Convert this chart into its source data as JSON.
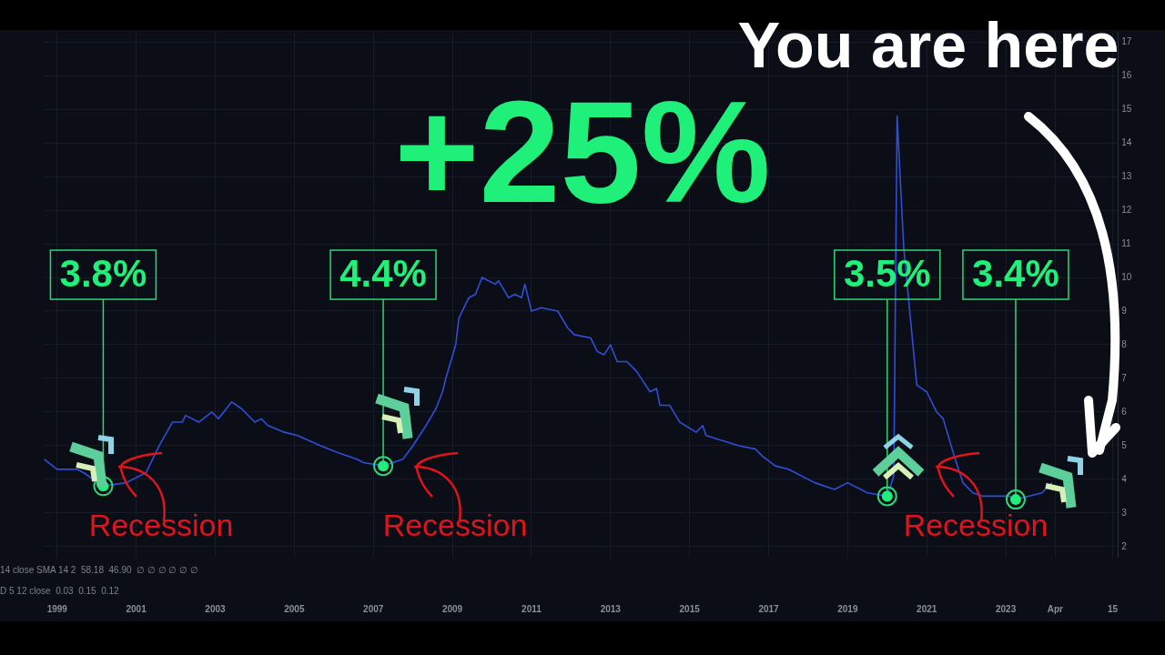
{
  "chart_data": {
    "type": "line",
    "title": "+25%",
    "x": [
      "1998-09",
      "1999-01",
      "1999-07",
      "1999-09",
      "2000-03",
      "2000-10",
      "2001-04",
      "2001-08",
      "2001-12",
      "2002-03",
      "2002-04",
      "2002-08",
      "2002-12",
      "2003-02",
      "2003-06",
      "2003-09",
      "2004-01",
      "2004-03",
      "2004-05",
      "2004-10",
      "2005-02",
      "2005-09",
      "2006-02",
      "2006-08",
      "2006-10",
      "2007-04",
      "2007-10",
      "2008-01",
      "2008-05",
      "2008-08",
      "2008-10",
      "2008-11",
      "2009-02",
      "2009-03",
      "2009-06",
      "2009-08",
      "2009-10",
      "2010-02",
      "2010-03",
      "2010-06",
      "2010-08",
      "2010-10",
      "2010-11",
      "2011-01",
      "2011-04",
      "2011-09",
      "2011-12",
      "2012-02",
      "2012-07",
      "2012-09",
      "2012-11",
      "2013-01",
      "2013-03",
      "2013-06",
      "2013-09",
      "2014-01",
      "2014-03",
      "2014-04",
      "2014-07",
      "2014-10",
      "2015-03",
      "2015-05",
      "2015-06",
      "2016-04",
      "2016-09",
      "2016-11",
      "2017-03",
      "2017-07",
      "2018-03",
      "2018-09",
      "2019-01",
      "2019-07",
      "2020-01",
      "2020-03",
      "2020-04",
      "2020-06",
      "2020-09",
      "2020-10",
      "2021-01",
      "2021-04",
      "2021-06",
      "2021-09",
      "2021-12",
      "2022-03",
      "2022-06",
      "2022-10",
      "2023-02",
      "2023-04",
      "2023-12",
      "2024-03"
    ],
    "series": [
      {
        "color": "#2f4fd8",
        "values": [
          4.6,
          4.3,
          4.3,
          4.2,
          3.8,
          3.9,
          4.2,
          5.0,
          5.7,
          5.7,
          5.9,
          5.7,
          6.0,
          5.8,
          6.3,
          6.1,
          5.7,
          5.8,
          5.6,
          5.4,
          5.3,
          5.0,
          4.8,
          4.6,
          4.5,
          4.4,
          4.6,
          5.0,
          5.6,
          6.1,
          6.6,
          7.0,
          8.0,
          8.8,
          9.4,
          9.5,
          10.0,
          9.8,
          9.9,
          9.4,
          9.5,
          9.4,
          9.8,
          9.0,
          9.1,
          9.0,
          8.5,
          8.3,
          8.2,
          7.8,
          7.7,
          8.0,
          7.5,
          7.5,
          7.2,
          6.6,
          6.7,
          6.2,
          6.2,
          5.7,
          5.4,
          5.6,
          5.3,
          5.0,
          4.9,
          4.7,
          4.4,
          4.3,
          3.9,
          3.7,
          3.9,
          3.6,
          3.5,
          4.1,
          14.8,
          10.9,
          7.8,
          6.8,
          6.6,
          6.0,
          5.8,
          4.8,
          3.9,
          3.6,
          3.5,
          3.5,
          3.5,
          3.4,
          3.6,
          3.9
        ]
      }
    ],
    "xlim": [
      "1998-09",
      "2025-11"
    ],
    "xticks": [
      {
        "value": "1999",
        "label": "1999"
      },
      {
        "value": "2001",
        "label": "2001"
      },
      {
        "value": "2003",
        "label": "2003"
      },
      {
        "value": "2005",
        "label": "2005"
      },
      {
        "value": "2007",
        "label": "2007"
      },
      {
        "value": "2009",
        "label": "2009"
      },
      {
        "value": "2011",
        "label": "2011"
      },
      {
        "value": "2013",
        "label": "2013"
      },
      {
        "value": "2015",
        "label": "2015"
      },
      {
        "value": "2017",
        "label": "2017"
      },
      {
        "value": "2019",
        "label": "2019"
      },
      {
        "value": "2021",
        "label": "2021"
      },
      {
        "value": "2023",
        "label": "2023"
      },
      {
        "value": "2024-04",
        "label": "Apr"
      },
      {
        "value": "2025-09-15",
        "label": "15"
      }
    ],
    "ylim": [
      1.7,
      17.3
    ],
    "yticks": [
      2,
      3,
      4,
      5,
      6,
      7,
      8,
      9,
      10,
      11,
      12,
      13,
      14,
      15,
      16,
      17
    ],
    "grid": true,
    "annotations": [
      "You are here",
      {
        "text": "3.8%",
        "x": "2000-03",
        "y": 3.8
      },
      {
        "text": "4.4%",
        "x": "2007-04",
        "y": 4.4
      },
      {
        "text": "3.5%",
        "x": "2020-01",
        "y": 3.5
      },
      {
        "text": "3.4%",
        "x": "2023-04",
        "y": 3.4
      },
      "Recession",
      "Recession",
      "Recession",
      "14 close SMA 14 2  58.18  46.90  ∅ ∅ ∅ ∅ ∅ ∅",
      "D 5 12 close  0.03  0.15  0.12"
    ]
  }
}
